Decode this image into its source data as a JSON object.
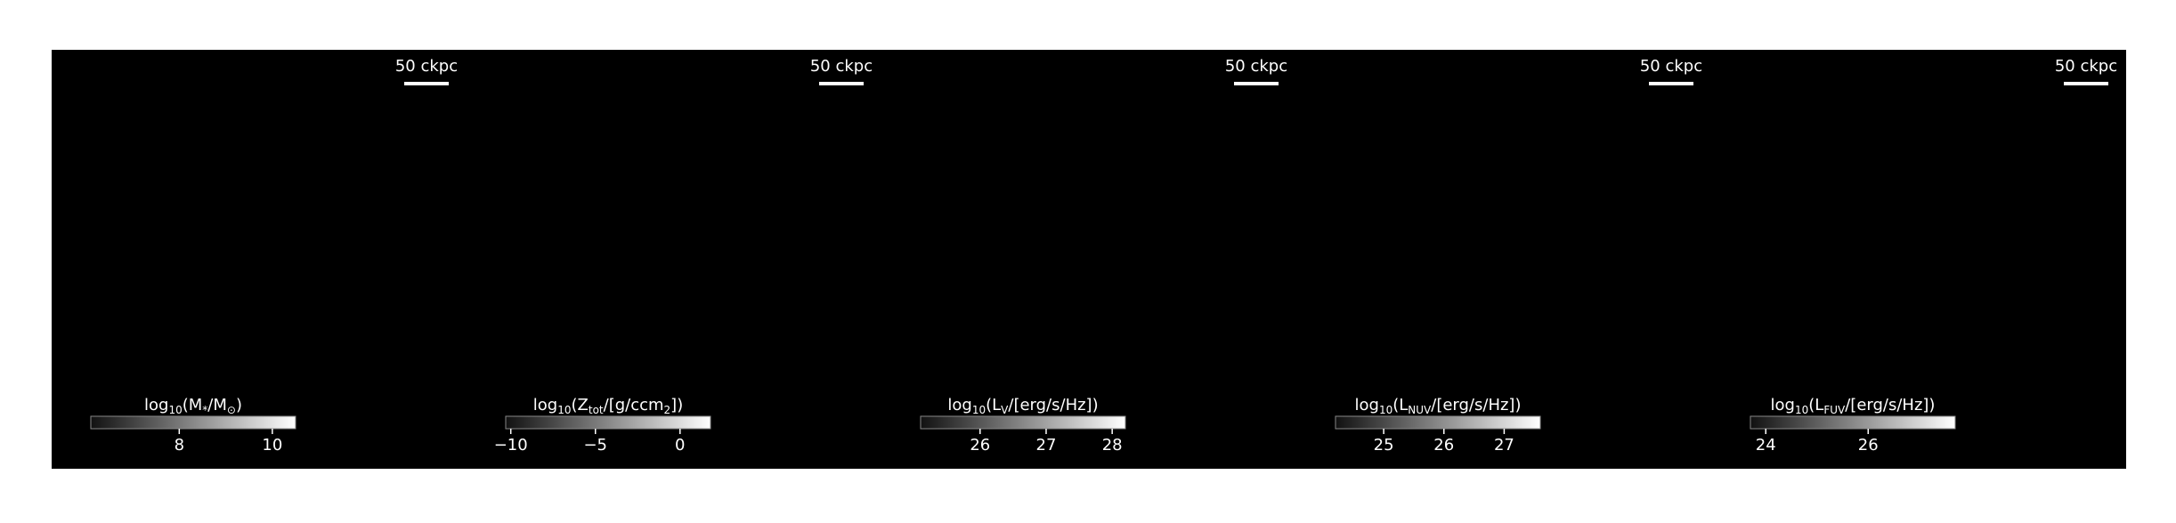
{
  "chart_data": [
    {
      "type": "image",
      "scale_label": "50 ckpc",
      "colorbar_label": [
        "log",
        "10",
        "(M",
        "*",
        "/M",
        "⊙",
        ")"
      ],
      "clim": [
        6.1,
        10.5
      ],
      "ticks": [
        8,
        10
      ]
    },
    {
      "type": "image",
      "scale_label": "50 ckpc",
      "colorbar_label": [
        "log",
        "10",
        "(Z",
        "tot",
        "/[g/ccm",
        "2",
        "])"
      ],
      "clim": [
        -10.3,
        1.8
      ],
      "ticks": [
        {
          "value": -10,
          "label": "−10"
        },
        {
          "value": -5,
          "label": "−5"
        },
        0
      ]
    },
    {
      "type": "image",
      "scale_label": "50 ckpc",
      "colorbar_label": [
        "log",
        "10",
        "(L",
        "V",
        "/[erg/s/Hz])"
      ],
      "clim": [
        25.1,
        28.2
      ],
      "ticks": [
        26,
        27,
        28
      ]
    },
    {
      "type": "image",
      "scale_label": "50 ckpc",
      "colorbar_label": [
        "log",
        "10",
        "(L",
        "NUV",
        "/[erg/s/Hz])"
      ],
      "clim": [
        24.2,
        27.6
      ],
      "ticks": [
        25,
        26,
        27
      ]
    },
    {
      "type": "image",
      "scale_label": "50 ckpc",
      "colorbar_label": [
        "log",
        "10",
        "(L",
        "FUV",
        "/[erg/s/Hz])"
      ],
      "clim": [
        23.7,
        27.7
      ],
      "ticks": [
        24,
        26
      ]
    }
  ]
}
